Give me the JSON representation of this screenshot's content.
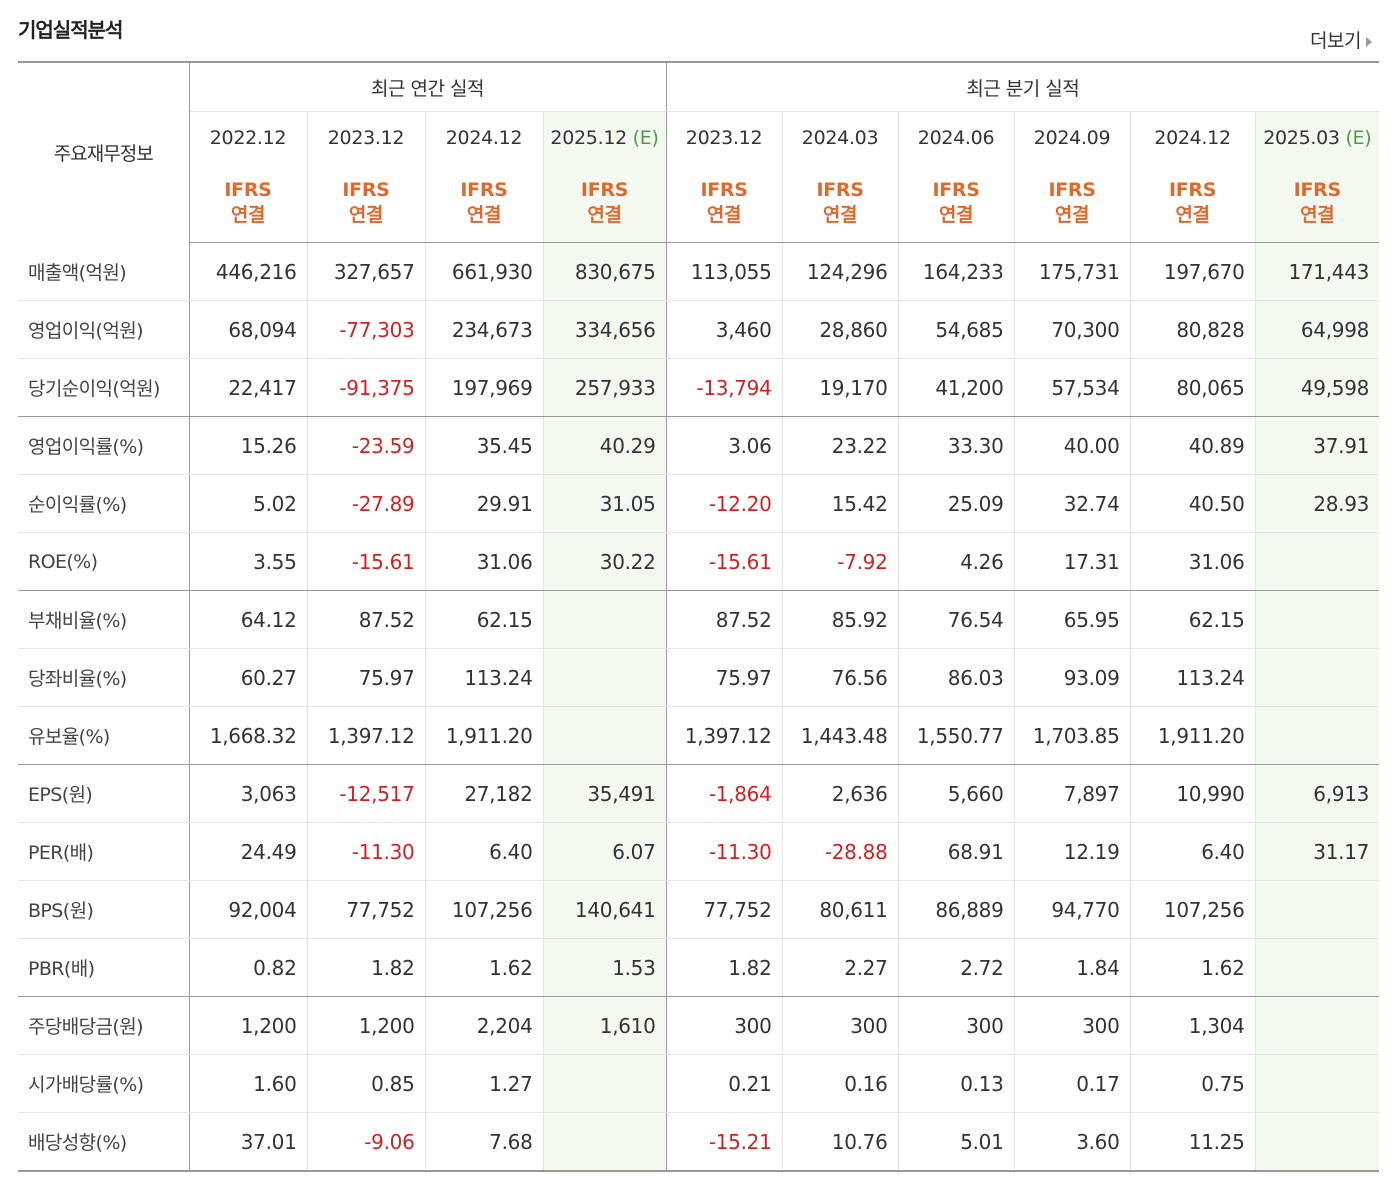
{
  "page": {
    "title": "기업실적분석",
    "more_label": "더보기"
  },
  "table": {
    "row_header_label": "주요재무정보",
    "groups": [
      {
        "label": "최근 연간 실적",
        "span": 4
      },
      {
        "label": "최근 분기 실적",
        "span": 6
      }
    ],
    "periods": [
      {
        "label": "2022.12",
        "est": ""
      },
      {
        "label": "2023.12",
        "est": ""
      },
      {
        "label": "2024.12",
        "est": ""
      },
      {
        "label": "2025.12",
        "est": "(E)"
      },
      {
        "label": "2023.12",
        "est": ""
      },
      {
        "label": "2024.03",
        "est": ""
      },
      {
        "label": "2024.06",
        "est": ""
      },
      {
        "label": "2024.09",
        "est": ""
      },
      {
        "label": "2024.12",
        "est": ""
      },
      {
        "label": "2025.03",
        "est": "(E)"
      }
    ],
    "gaap": {
      "line1": "IFRS",
      "line2": "연결"
    },
    "rows": [
      {
        "label": "매출액(억원)",
        "values": [
          "446,216",
          "327,657",
          "661,930",
          "830,675",
          "113,055",
          "124,296",
          "164,233",
          "175,731",
          "197,670",
          "171,443"
        ]
      },
      {
        "label": "영업이익(억원)",
        "values": [
          "68,094",
          "-77,303",
          "234,673",
          "334,656",
          "3,460",
          "28,860",
          "54,685",
          "70,300",
          "80,828",
          "64,998"
        ]
      },
      {
        "label": "당기순이익(억원)",
        "values": [
          "22,417",
          "-91,375",
          "197,969",
          "257,933",
          "-13,794",
          "19,170",
          "41,200",
          "57,534",
          "80,065",
          "49,598"
        ]
      },
      {
        "label": "영업이익률(%)",
        "values": [
          "15.26",
          "-23.59",
          "35.45",
          "40.29",
          "3.06",
          "23.22",
          "33.30",
          "40.00",
          "40.89",
          "37.91"
        ]
      },
      {
        "label": "순이익률(%)",
        "values": [
          "5.02",
          "-27.89",
          "29.91",
          "31.05",
          "-12.20",
          "15.42",
          "25.09",
          "32.74",
          "40.50",
          "28.93"
        ]
      },
      {
        "label": "ROE(%)",
        "values": [
          "3.55",
          "-15.61",
          "31.06",
          "30.22",
          "-15.61",
          "-7.92",
          "4.26",
          "17.31",
          "31.06",
          ""
        ]
      },
      {
        "label": "부채비율(%)",
        "values": [
          "64.12",
          "87.52",
          "62.15",
          "",
          "87.52",
          "85.92",
          "76.54",
          "65.95",
          "62.15",
          ""
        ]
      },
      {
        "label": "당좌비율(%)",
        "values": [
          "60.27",
          "75.97",
          "113.24",
          "",
          "75.97",
          "76.56",
          "86.03",
          "93.09",
          "113.24",
          ""
        ]
      },
      {
        "label": "유보율(%)",
        "values": [
          "1,668.32",
          "1,397.12",
          "1,911.20",
          "",
          "1,397.12",
          "1,443.48",
          "1,550.77",
          "1,703.85",
          "1,911.20",
          ""
        ]
      },
      {
        "label": "EPS(원)",
        "values": [
          "3,063",
          "-12,517",
          "27,182",
          "35,491",
          "-1,864",
          "2,636",
          "5,660",
          "7,897",
          "10,990",
          "6,913"
        ]
      },
      {
        "label": "PER(배)",
        "values": [
          "24.49",
          "-11.30",
          "6.40",
          "6.07",
          "-11.30",
          "-28.88",
          "68.91",
          "12.19",
          "6.40",
          "31.17"
        ]
      },
      {
        "label": "BPS(원)",
        "values": [
          "92,004",
          "77,752",
          "107,256",
          "140,641",
          "77,752",
          "80,611",
          "86,889",
          "94,770",
          "107,256",
          ""
        ]
      },
      {
        "label": "PBR(배)",
        "values": [
          "0.82",
          "1.82",
          "1.62",
          "1.53",
          "1.82",
          "2.27",
          "2.72",
          "1.84",
          "1.62",
          ""
        ]
      },
      {
        "label": "주당배당금(원)",
        "values": [
          "1,200",
          "1,200",
          "2,204",
          "1,610",
          "300",
          "300",
          "300",
          "300",
          "1,304",
          ""
        ]
      },
      {
        "label": "시가배당률(%)",
        "values": [
          "1.60",
          "0.85",
          "1.27",
          "",
          "0.21",
          "0.16",
          "0.13",
          "0.17",
          "0.75",
          ""
        ]
      },
      {
        "label": "배당성향(%)",
        "values": [
          "37.01",
          "-9.06",
          "7.68",
          "",
          "-15.21",
          "10.76",
          "5.01",
          "3.60",
          "11.25",
          ""
        ]
      }
    ]
  }
}
